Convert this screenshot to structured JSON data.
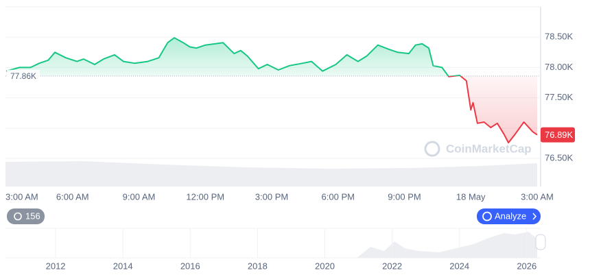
{
  "chart_data": {
    "type": "line",
    "x": [
      0,
      0.6,
      1.1,
      1.5,
      1.9,
      2.2,
      2.7,
      3.2,
      3.5,
      4.0,
      4.4,
      4.9,
      5.3,
      5.8,
      6.4,
      6.9,
      7.3,
      7.6,
      8.0,
      8.3,
      8.6,
      9.0,
      9.8,
      10.3,
      10.6,
      10.9,
      11.4,
      11.8,
      12.3,
      12.8,
      13.4,
      13.8,
      14.3,
      14.9,
      15.4,
      15.9,
      16.3,
      16.8,
      17.3,
      17.7,
      18.2,
      18.5,
      18.8,
      19.1,
      19.3,
      19.7,
      20.0,
      20.5,
      20.8,
      21.0,
      21.1,
      21.3,
      21.6,
      21.9,
      22.2,
      22.5,
      22.7,
      23.0,
      23.4,
      23.8,
      24.0
    ],
    "values": [
      77940,
      78000,
      78000,
      78070,
      78120,
      78250,
      78160,
      78100,
      78140,
      78050,
      78140,
      78210,
      78100,
      78070,
      78100,
      78160,
      78410,
      78490,
      78410,
      78340,
      78320,
      78370,
      78410,
      78230,
      78280,
      78190,
      77980,
      78050,
      77960,
      78030,
      78070,
      78100,
      77940,
      78050,
      78210,
      78100,
      78190,
      78370,
      78300,
      78250,
      78230,
      78370,
      78390,
      78320,
      78030,
      78000,
      77850,
      77870,
      77780,
      77300,
      77420,
      77080,
      77100,
      77010,
      77080,
      76900,
      76760,
      76900,
      77100,
      76940,
      76890
    ],
    "up_color": "#16c784",
    "down_color": "#ea3943",
    "xlim": [
      0,
      24
    ],
    "ylim": [
      76060,
      79000
    ],
    "xticks": [
      {
        "value": 0,
        "label": "3:00 AM"
      },
      {
        "value": 3,
        "label": "6:00 AM"
      },
      {
        "value": 6,
        "label": "9:00 AM"
      },
      {
        "value": 9,
        "label": "12:00 PM"
      },
      {
        "value": 12,
        "label": "3:00 PM"
      },
      {
        "value": 15,
        "label": "6:00 PM"
      },
      {
        "value": 18,
        "label": "9:00 PM"
      },
      {
        "value": 21,
        "label": "18 May"
      },
      {
        "value": 24,
        "label": "3:00 AM"
      }
    ],
    "yticks": [
      {
        "value": 76500,
        "label": "76.50K"
      },
      {
        "value": 77000,
        "label": ""
      },
      {
        "value": 77500,
        "label": "77.50K"
      },
      {
        "value": 78000,
        "label": "78.00K"
      },
      {
        "value": 78500,
        "label": "78.50K"
      }
    ],
    "grid": true,
    "baseline": {
      "value": 77860,
      "label": "77.86K"
    },
    "current_label": "76.89K",
    "watermark": "CoinMarketCap",
    "alerts_count": 156,
    "analyze_label": "Analyze",
    "navigator": {
      "xlim": [
        2010.51,
        2026.31
      ],
      "xticks": [
        2012,
        2014,
        2016,
        2018,
        2020,
        2022,
        2024,
        2026
      ]
    }
  }
}
